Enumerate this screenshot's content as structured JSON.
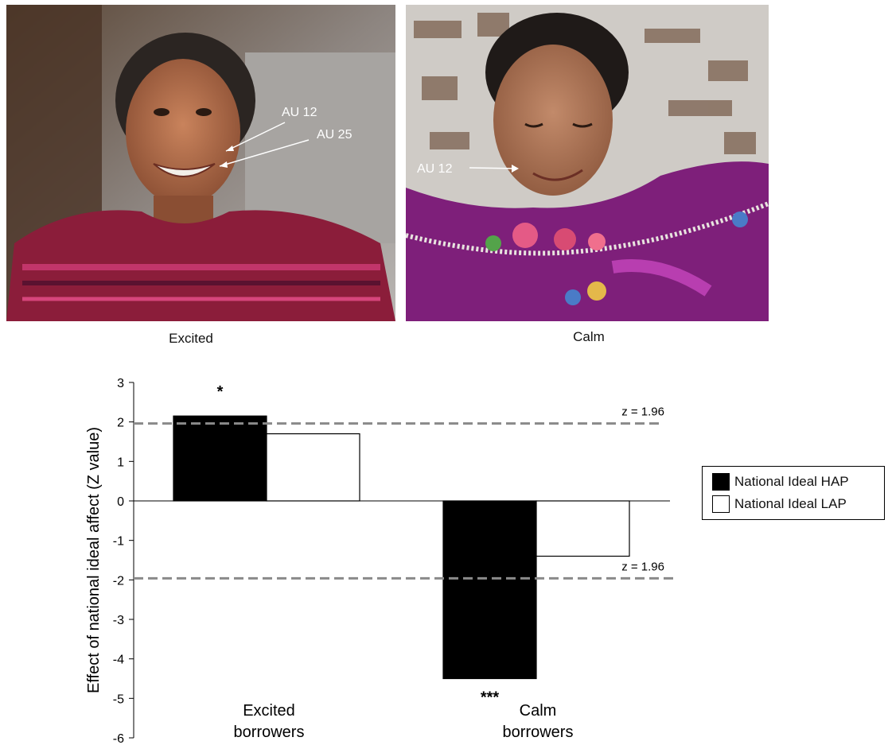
{
  "photos": [
    {
      "caption": "Excited",
      "annotations": [
        "AU 12",
        "AU 25"
      ]
    },
    {
      "caption": "Calm",
      "annotations": [
        "AU 12"
      ]
    }
  ],
  "legend": {
    "items": [
      {
        "label": "National Ideal HAP",
        "color": "#000000"
      },
      {
        "label": "National Ideal LAP",
        "color": "#ffffff"
      }
    ]
  },
  "chart_data": {
    "type": "bar",
    "categories": [
      "Excited\nborrowers",
      "Calm\nborrowers"
    ],
    "series": [
      {
        "name": "National Ideal HAP",
        "values": [
          2.15,
          -4.5
        ],
        "color": "#000000"
      },
      {
        "name": "National Ideal LAP",
        "values": [
          1.7,
          -1.4
        ],
        "color": "#ffffff"
      }
    ],
    "ylabel": "Effect of national ideal affect (Z value)",
    "ylim": [
      -6,
      3
    ],
    "yticks": [
      3,
      2,
      1,
      0,
      -1,
      -2,
      -3,
      -4,
      -5,
      -6
    ],
    "significance": [
      {
        "category": 0,
        "series": 0,
        "label": "*"
      },
      {
        "category": 1,
        "series": 0,
        "label": "***"
      }
    ],
    "reference_lines": [
      {
        "value": 1.96,
        "label": "z = 1.96"
      },
      {
        "value": -1.96,
        "label": "z = 1.96"
      }
    ],
    "grid": false,
    "legend_position": "right"
  }
}
